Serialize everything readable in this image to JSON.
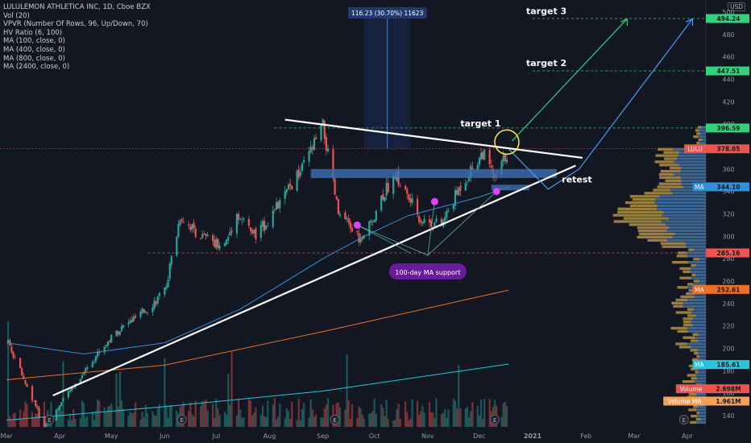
{
  "legend": [
    "LULULEMON ATHLETICA INC, 1D, Cboe BZX",
    "Vol (20)",
    "VPVR (Number Of Rows, 96, Up/Down, 70)",
    "HV Ratio (6, 100)",
    "MA (100, close, 0)",
    "MA (400, close, 0)",
    "MA (800, close, 0)",
    "MA (2400, close, 0)"
  ],
  "currency": "USD",
  "colors": {
    "background": "#131722",
    "up": "#26a69a",
    "down": "#ef5350",
    "white_line": "#ffffff",
    "ma100": "#2f8fd8",
    "ma_orange": "#e8702a",
    "ma_teal": "#26c6da",
    "vpvr_up": "#4a7fb5",
    "vpvr_down": "#c8a24a",
    "zone": "#3d6fb3",
    "green_target": "#33d17a",
    "blue_arrow": "#4a9eff",
    "circle": "#ffeb3b",
    "magenta": "#e040fb"
  },
  "chart_data": {
    "type": "candlestick",
    "title": "LULULEMON ATHLETICA INC, 1D, Cboe BZX",
    "x_tick_labels": [
      "Mar",
      "Apr",
      "May",
      "Jun",
      "Jul",
      "Aug",
      "Sep",
      "Oct",
      "Nov",
      "Dec",
      "2021",
      "Feb",
      "Mar",
      "Apr"
    ],
    "y_tick_labels": [
      140,
      160,
      180,
      200,
      220,
      240,
      260,
      280,
      300,
      320,
      340,
      360,
      380,
      400,
      420,
      440,
      460,
      480,
      500
    ],
    "ylim": [
      130,
      505
    ],
    "price_path": [
      {
        "date": "2020-03-02",
        "close": 205
      },
      {
        "date": "2020-03-16",
        "close": 155
      },
      {
        "date": "2020-03-23",
        "close": 130
      },
      {
        "date": "2020-04-06",
        "close": 160
      },
      {
        "date": "2020-04-20",
        "close": 190
      },
      {
        "date": "2020-05-04",
        "close": 215
      },
      {
        "date": "2020-05-18",
        "close": 230
      },
      {
        "date": "2020-06-01",
        "close": 250
      },
      {
        "date": "2020-06-10",
        "close": 318
      },
      {
        "date": "2020-06-22",
        "close": 300
      },
      {
        "date": "2020-07-06",
        "close": 292
      },
      {
        "date": "2020-07-13",
        "close": 320
      },
      {
        "date": "2020-07-24",
        "close": 300
      },
      {
        "date": "2020-08-05",
        "close": 325
      },
      {
        "date": "2020-08-20",
        "close": 360
      },
      {
        "date": "2020-09-01",
        "close": 398
      },
      {
        "date": "2020-09-10",
        "close": 320
      },
      {
        "date": "2020-09-24",
        "close": 295
      },
      {
        "date": "2020-10-05",
        "close": 335
      },
      {
        "date": "2020-10-13",
        "close": 355
      },
      {
        "date": "2020-10-28",
        "close": 315
      },
      {
        "date": "2020-11-09",
        "close": 310
      },
      {
        "date": "2020-11-20",
        "close": 345
      },
      {
        "date": "2020-12-03",
        "close": 375
      },
      {
        "date": "2020-12-10",
        "close": 350
      },
      {
        "date": "2020-12-18",
        "close": 378
      }
    ],
    "price_label_axis": [
      {
        "text": "LULU",
        "value": "378.05",
        "price": 378.05,
        "color": "#ef5350"
      },
      {
        "text": "",
        "value": "396.59",
        "price": 396.59,
        "color": "#33d17a"
      },
      {
        "text": "",
        "value": "447.51",
        "price": 447.51,
        "color": "#33d17a"
      },
      {
        "text": "",
        "value": "494.24",
        "price": 494.24,
        "color": "#33d17a"
      },
      {
        "text": "MA",
        "value": "344.10",
        "price": 344.1,
        "color": "#2f8fd8"
      },
      {
        "text": "",
        "value": "285.16",
        "price": 285.16,
        "color": "#ef5350"
      },
      {
        "text": "MA",
        "value": "252.61",
        "price": 252.61,
        "color": "#e8702a"
      },
      {
        "text": "MA",
        "value": "185.61",
        "price": 185.61,
        "color": "#26c6da"
      },
      {
        "text": "Volume",
        "value": "2.698M",
        "price": 164,
        "color": "#ef5350"
      },
      {
        "text": "Volume MA",
        "value": "1.961M",
        "price": 153,
        "color": "#f5a05a"
      }
    ],
    "range_measure_label": "116.23 (30.70%) 11623",
    "annotations": [
      "target 1",
      "target 2",
      "target 3",
      "retest",
      "100-day MA support"
    ],
    "earnings_marker": "E"
  }
}
